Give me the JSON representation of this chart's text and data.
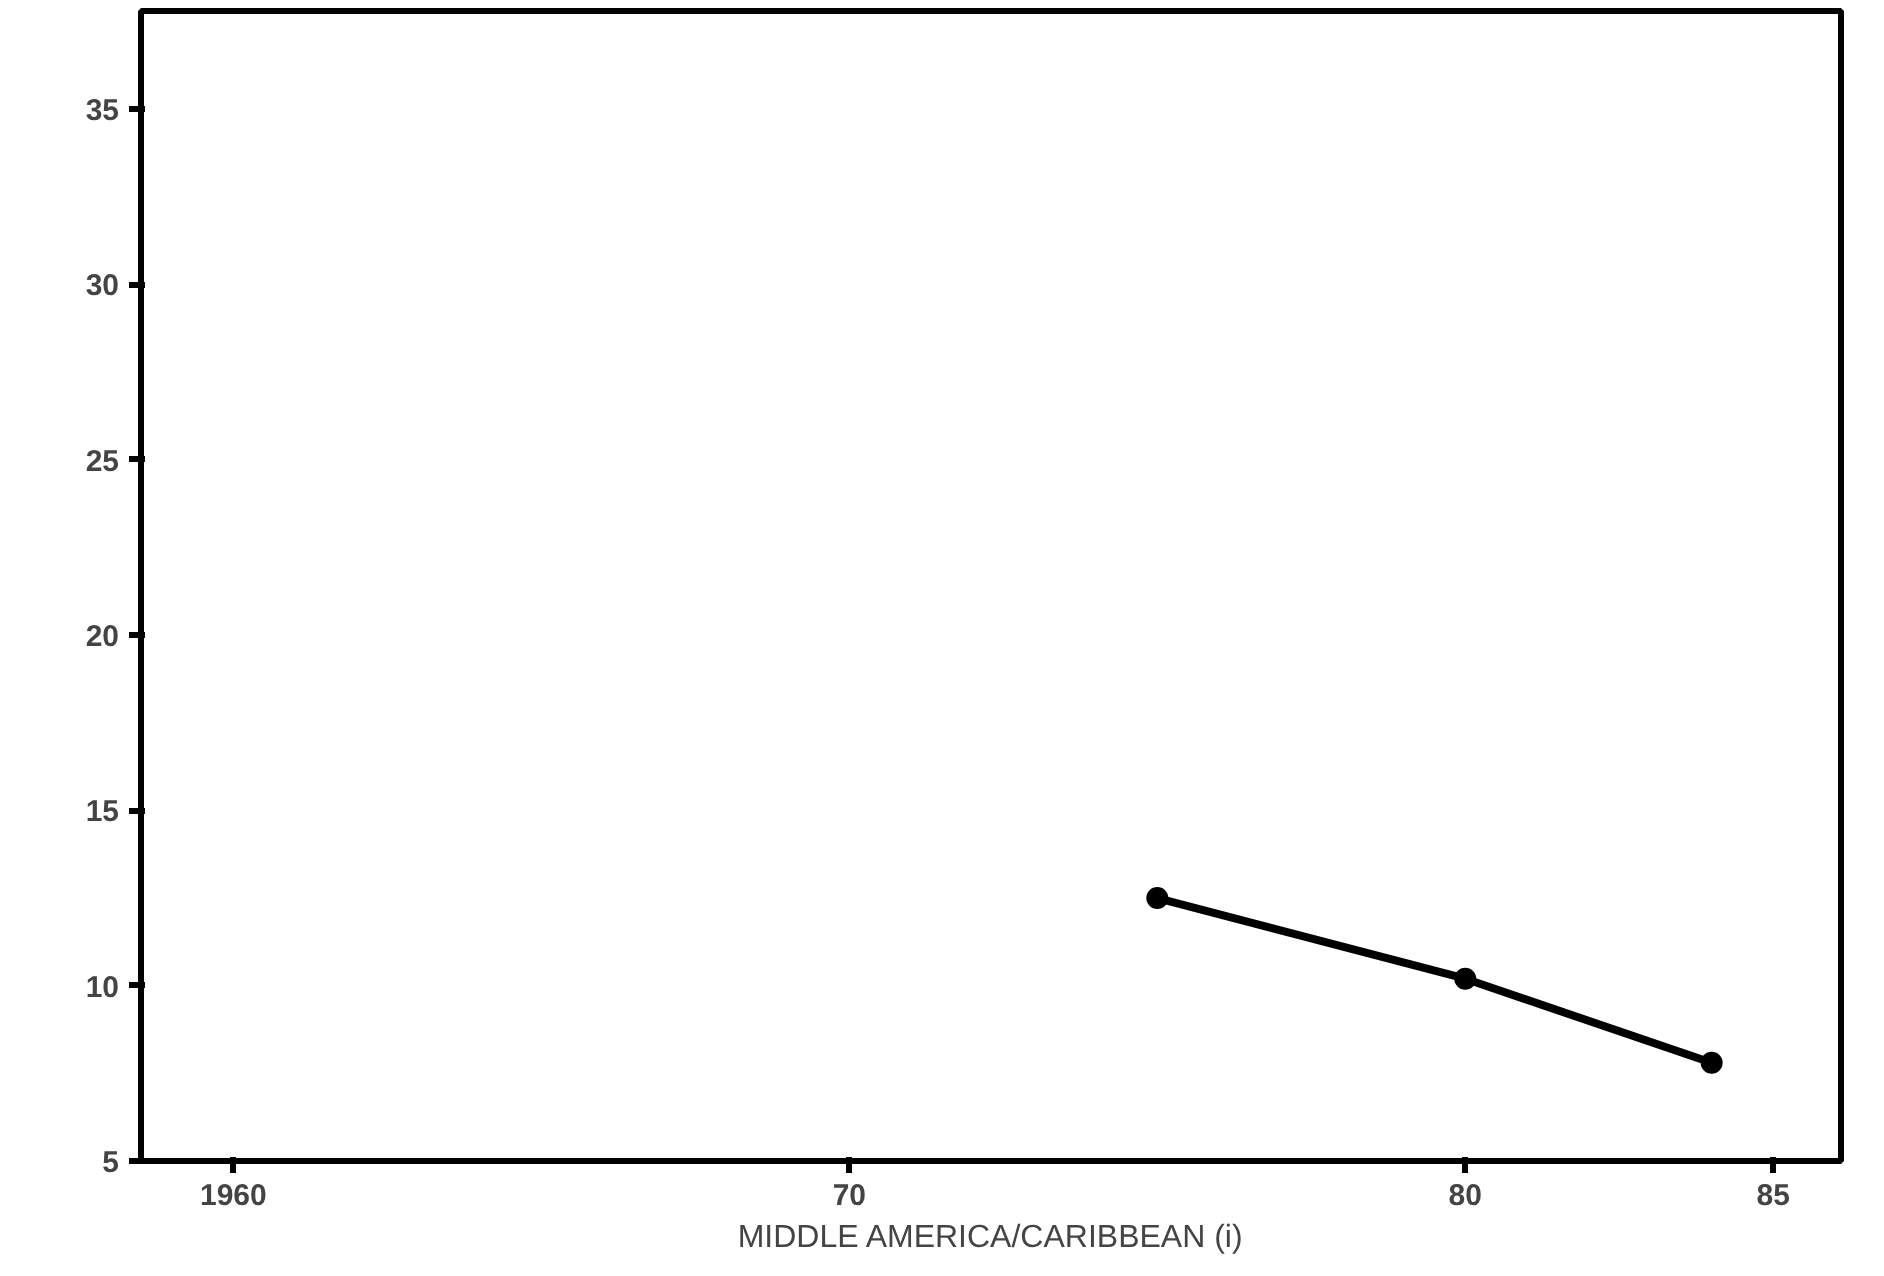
{
  "chart_data": {
    "type": "line",
    "xlabel": "MIDDLE AMERICA/CARIBBEAN (i)",
    "x": [
      1975,
      1980,
      1984
    ],
    "series": [
      {
        "color": "#000000",
        "values": [
          12.5,
          10.2,
          7.8
        ]
      }
    ],
    "xlim": [
      1958.5,
      1986.1
    ],
    "ylim": [
      5,
      37.8
    ],
    "xticks": [
      1960,
      {
        "value": 1970,
        "label": "70"
      },
      {
        "value": 1980,
        "label": "80"
      },
      {
        "value": 1985,
        "label": "85"
      }
    ],
    "yticks": [
      5,
      10,
      15,
      20,
      25,
      30,
      35
    ],
    "grid": false,
    "marker": "circle",
    "line_style": "solid"
  }
}
